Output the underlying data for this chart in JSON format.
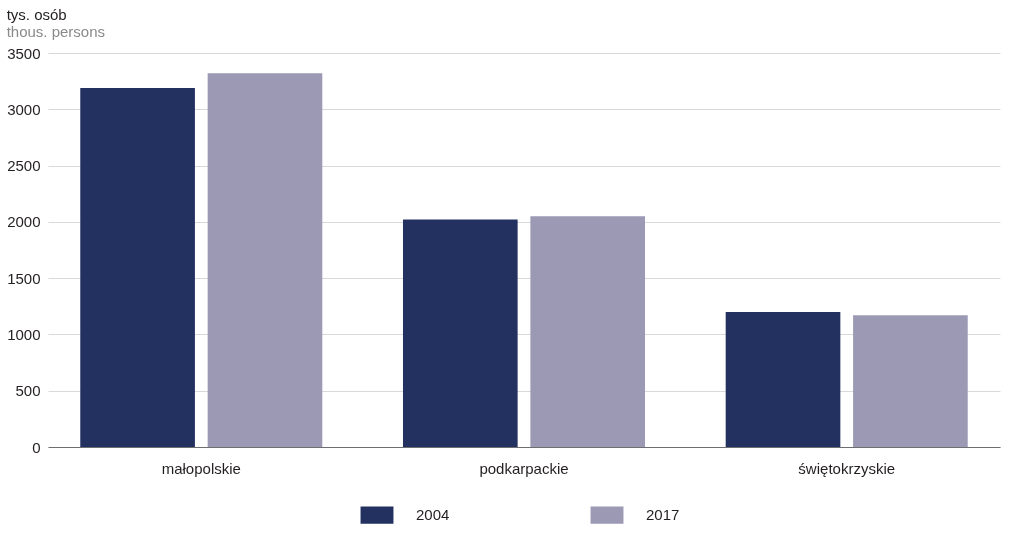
{
  "chart_data": {
    "type": "bar",
    "title": "tys. osób",
    "subtitle": "thous. persons",
    "categories": [
      "małopolskie",
      "podkarpackie",
      "świętokrzyskie"
    ],
    "series": [
      {
        "name": "2004",
        "color": "#22315f",
        "values": [
          3190,
          2020,
          1200
        ]
      },
      {
        "name": "2017",
        "color": "#9c99b5",
        "values": [
          3320,
          2050,
          1170
        ]
      }
    ],
    "ylim": [
      0,
      3500
    ],
    "yticks": [
      0,
      500,
      1000,
      1500,
      2000,
      2500,
      3000,
      3500
    ],
    "grid": "y",
    "legend": "bottom"
  }
}
